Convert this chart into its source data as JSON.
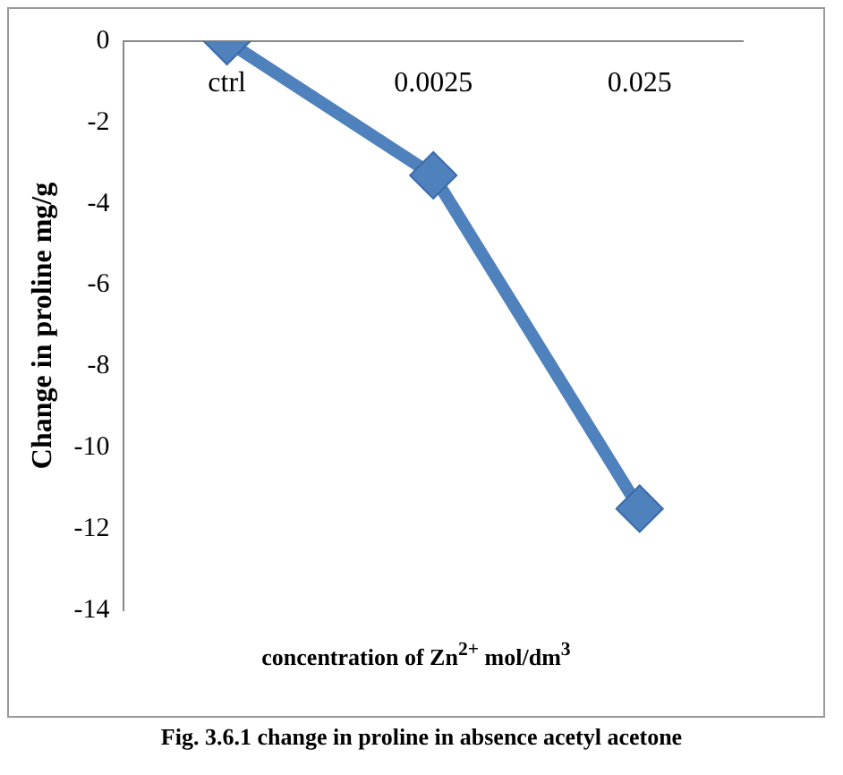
{
  "chart_data": {
    "type": "line",
    "ylabel": "Change in proline mg/g",
    "xlabel": "concentration of Zn$^{2+}$ mol/dm$^{3}$",
    "annotations": [
      "Fig. 3.6.1 change in proline in absence acetyl acetone"
    ],
    "categories": [
      "ctrl",
      "0.0025",
      "0.025"
    ],
    "series": [
      {
        "color": "#4f81bd",
        "values": [
          0,
          -3.3,
          -11.5
        ]
      }
    ],
    "ylim": [
      -14,
      0
    ],
    "yticks": [
      -14,
      -12,
      -10,
      -8,
      -6,
      -4,
      -2,
      0
    ],
    "grid": false,
    "marker": "diamond",
    "line_style": "solid"
  }
}
